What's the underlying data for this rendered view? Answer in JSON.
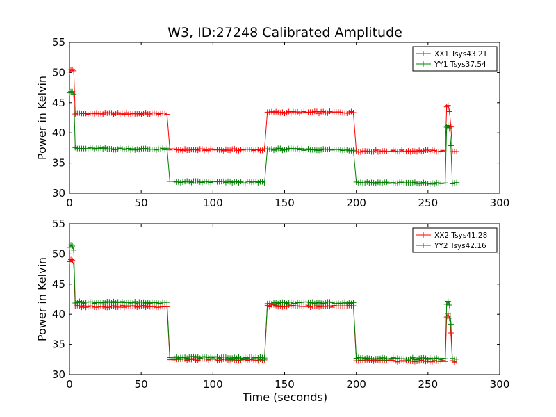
{
  "chart_data": [
    {
      "type": "line",
      "title": "W3, ID:27248 Calibrated Amplitude",
      "xlabel": "",
      "ylabel": "Power in Kelvin",
      "xlim": [
        0,
        300
      ],
      "ylim": [
        30,
        55
      ],
      "xticks": [
        "0",
        "50",
        "100",
        "150",
        "200",
        "250",
        "300"
      ],
      "yticks": [
        "30",
        "35",
        "40",
        "45",
        "50",
        "55"
      ],
      "grid": false,
      "legend": "top-right",
      "series": [
        {
          "name": "XX1 Tsys43.21",
          "color": "#ff0000",
          "marker": "+",
          "segments": [
            {
              "x": [
                0,
                1,
                2,
                3
              ],
              "y": [
                50.2,
                50.4,
                50.5,
                50.3
              ]
            },
            {
              "x": [
                4,
                68
              ],
              "y": [
                43.2,
                43.2
              ]
            },
            {
              "x": [
                70,
                136
              ],
              "y": [
                37.2,
                37.2
              ]
            },
            {
              "x": [
                138,
                198
              ],
              "y": [
                43.4,
                43.4
              ]
            },
            {
              "x": [
                200,
                262
              ],
              "y": [
                37.0,
                37.0
              ]
            },
            {
              "x": [
                263,
                264,
                265,
                266
              ],
              "y": [
                44.2,
                44.4,
                43.6,
                41.0
              ]
            },
            {
              "x": [
                267,
                270
              ],
              "y": [
                37.0,
                37.0
              ]
            }
          ]
        },
        {
          "name": "YY1 Tsys37.54",
          "color": "#008000",
          "marker": "+",
          "segments": [
            {
              "x": [
                0,
                1,
                2,
                3
              ],
              "y": [
                46.8,
                47.0,
                46.9,
                46.5
              ]
            },
            {
              "x": [
                4,
                68
              ],
              "y": [
                37.4,
                37.3
              ]
            },
            {
              "x": [
                70,
                136
              ],
              "y": [
                31.9,
                31.8
              ]
            },
            {
              "x": [
                138,
                198
              ],
              "y": [
                37.3,
                37.2
              ]
            },
            {
              "x": [
                200,
                262
              ],
              "y": [
                31.8,
                31.6
              ]
            },
            {
              "x": [
                263,
                264,
                265,
                266
              ],
              "y": [
                41.0,
                41.2,
                40.8,
                38.0
              ]
            },
            {
              "x": [
                267,
                270
              ],
              "y": [
                31.6,
                31.6
              ]
            }
          ]
        }
      ]
    },
    {
      "type": "line",
      "title": "",
      "xlabel": "Time (seconds)",
      "ylabel": "Power in Kelvin",
      "xlim": [
        0,
        300
      ],
      "ylim": [
        30,
        55
      ],
      "xticks": [
        "0",
        "50",
        "100",
        "150",
        "200",
        "250",
        "300"
      ],
      "yticks": [
        "30",
        "35",
        "40",
        "45",
        "50",
        "55"
      ],
      "grid": false,
      "legend": "top-right",
      "series": [
        {
          "name": "XX2 Tsys41.28",
          "color": "#ff0000",
          "marker": "+",
          "segments": [
            {
              "x": [
                0,
                1,
                2,
                3
              ],
              "y": [
                48.8,
                49.1,
                49.0,
                48.0
              ]
            },
            {
              "x": [
                4,
                68
              ],
              "y": [
                41.3,
                41.3
              ]
            },
            {
              "x": [
                70,
                136
              ],
              "y": [
                32.5,
                32.4
              ]
            },
            {
              "x": [
                138,
                198
              ],
              "y": [
                41.4,
                41.3
              ]
            },
            {
              "x": [
                200,
                262
              ],
              "y": [
                32.3,
                32.2
              ]
            },
            {
              "x": [
                263,
                264,
                265,
                266
              ],
              "y": [
                39.6,
                40.0,
                39.5,
                37.0
              ]
            },
            {
              "x": [
                267,
                270
              ],
              "y": [
                32.2,
                32.2
              ]
            }
          ]
        },
        {
          "name": "YY2 Tsys42.16",
          "color": "#008000",
          "marker": "+",
          "segments": [
            {
              "x": [
                0,
                1,
                2,
                3
              ],
              "y": [
                51.2,
                51.4,
                51.3,
                50.8
              ]
            },
            {
              "x": [
                4,
                68
              ],
              "y": [
                42.0,
                41.9
              ]
            },
            {
              "x": [
                70,
                136
              ],
              "y": [
                32.9,
                32.8
              ]
            },
            {
              "x": [
                138,
                198
              ],
              "y": [
                41.9,
                41.9
              ]
            },
            {
              "x": [
                200,
                262
              ],
              "y": [
                32.7,
                32.6
              ]
            },
            {
              "x": [
                263,
                264,
                265,
                266
              ],
              "y": [
                41.6,
                42.0,
                41.5,
                38.5
              ]
            },
            {
              "x": [
                267,
                270
              ],
              "y": [
                32.6,
                32.6
              ]
            }
          ]
        }
      ]
    }
  ]
}
